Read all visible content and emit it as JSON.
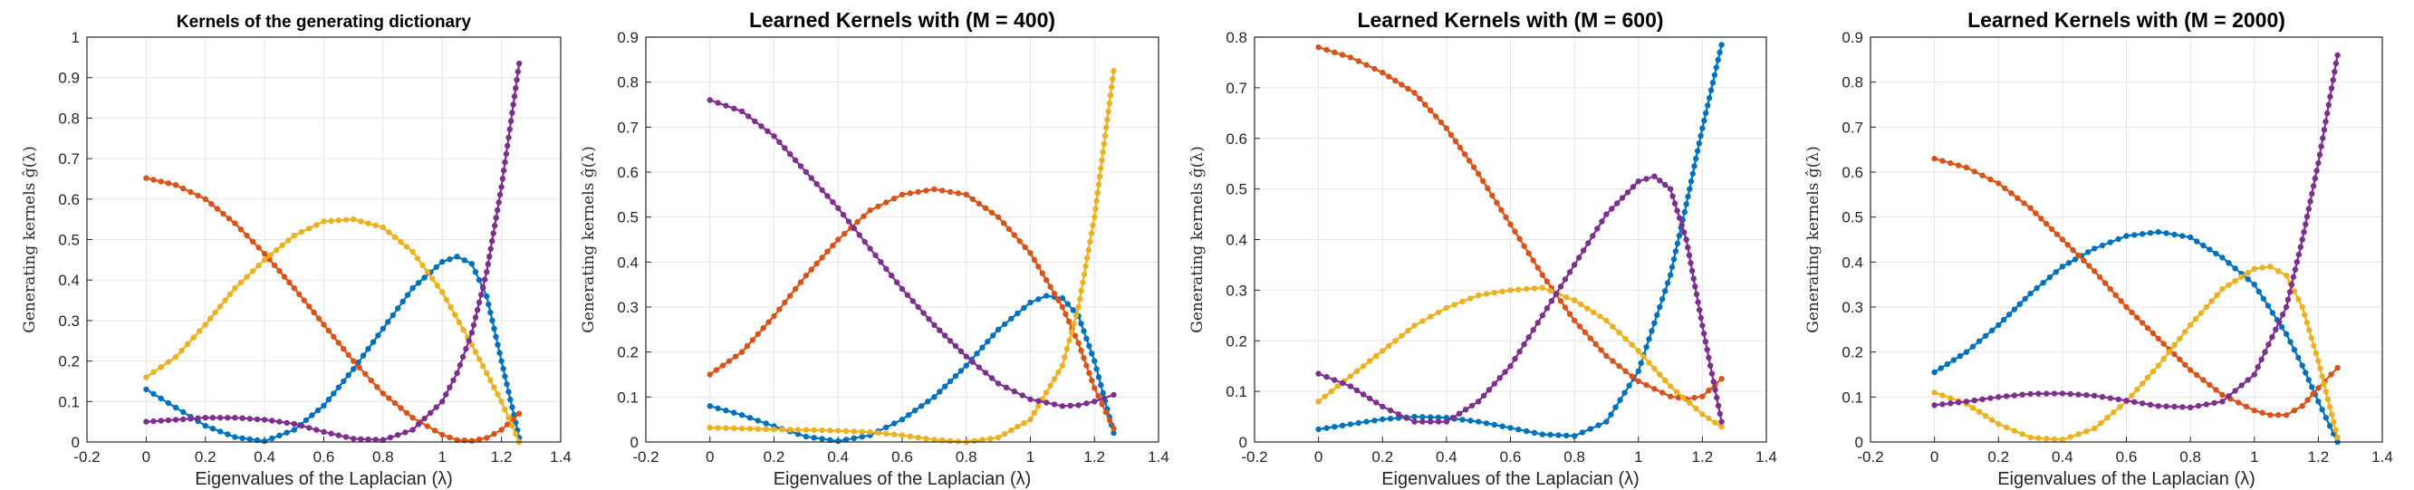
{
  "chart_data": [
    {
      "type": "line",
      "title": "Kernels of the generating dictionary",
      "xlabel": "Eigenvalues of the Laplacian (λ)",
      "ylabel": "Generating kernels ĝ(λ)",
      "xlim": [
        -0.2,
        1.4
      ],
      "ylim": [
        0,
        1.0
      ],
      "xticks": [
        "-0.2",
        "0",
        "0.2",
        "0.4",
        "0.6",
        "0.8",
        "1",
        "1.2",
        "1.4"
      ],
      "yticks": [
        "0",
        "0.1",
        "0.2",
        "0.3",
        "0.4",
        "0.5",
        "0.6",
        "0.7",
        "0.8",
        "0.9",
        "1"
      ],
      "grid": true,
      "series": [
        {
          "color": "#0072bd",
          "x": [
            0,
            0.1,
            0.2,
            0.3,
            0.4,
            0.5,
            0.6,
            0.7,
            0.8,
            0.9,
            1.0,
            1.05,
            1.1,
            1.15,
            1.2,
            1.26
          ],
          "values": [
            0.13,
            0.085,
            0.04,
            0.012,
            0.002,
            0.03,
            0.09,
            0.18,
            0.28,
            0.38,
            0.445,
            0.458,
            0.44,
            0.36,
            0.2,
            0.01
          ]
        },
        {
          "color": "#d95319",
          "x": [
            0,
            0.1,
            0.2,
            0.3,
            0.4,
            0.5,
            0.6,
            0.7,
            0.8,
            0.9,
            1.0,
            1.05,
            1.1,
            1.15,
            1.2,
            1.26
          ],
          "values": [
            0.652,
            0.635,
            0.6,
            0.54,
            0.465,
            0.38,
            0.29,
            0.2,
            0.12,
            0.06,
            0.018,
            0.005,
            0.003,
            0.01,
            0.03,
            0.07
          ]
        },
        {
          "color": "#edb120",
          "x": [
            0,
            0.1,
            0.2,
            0.3,
            0.4,
            0.5,
            0.6,
            0.7,
            0.8,
            0.9,
            1.0,
            1.1,
            1.2,
            1.26
          ],
          "values": [
            0.16,
            0.21,
            0.29,
            0.38,
            0.45,
            0.51,
            0.545,
            0.55,
            0.53,
            0.47,
            0.37,
            0.24,
            0.1,
            0.0
          ]
        },
        {
          "color": "#7e2f8e",
          "x": [
            0,
            0.1,
            0.2,
            0.3,
            0.4,
            0.5,
            0.6,
            0.7,
            0.8,
            0.9,
            1.0,
            1.05,
            1.1,
            1.15,
            1.2,
            1.26
          ],
          "values": [
            0.05,
            0.055,
            0.06,
            0.06,
            0.055,
            0.045,
            0.025,
            0.008,
            0.005,
            0.03,
            0.1,
            0.17,
            0.27,
            0.42,
            0.63,
            0.935
          ]
        }
      ]
    },
    {
      "type": "line",
      "title": "Learned Kernels with (M = 400)",
      "xlabel": "Eigenvalues of the Laplacian (λ)",
      "ylabel": "Generating kernels ĝ(λ)",
      "xlim": [
        -0.2,
        1.4
      ],
      "ylim": [
        0,
        0.9
      ],
      "xticks": [
        "-0.2",
        "0",
        "0.2",
        "0.4",
        "0.6",
        "0.8",
        "1",
        "1.2",
        "1.4"
      ],
      "yticks": [
        "0",
        "0.1",
        "0.2",
        "0.3",
        "0.4",
        "0.5",
        "0.6",
        "0.7",
        "0.8",
        "0.9"
      ],
      "grid": true,
      "series": [
        {
          "color": "#0072bd",
          "x": [
            0,
            0.1,
            0.2,
            0.3,
            0.4,
            0.5,
            0.6,
            0.7,
            0.8,
            0.9,
            1.0,
            1.05,
            1.1,
            1.15,
            1.2,
            1.26
          ],
          "values": [
            0.08,
            0.06,
            0.035,
            0.012,
            0.002,
            0.015,
            0.05,
            0.1,
            0.17,
            0.25,
            0.31,
            0.325,
            0.32,
            0.28,
            0.18,
            0.02
          ]
        },
        {
          "color": "#d95319",
          "x": [
            0,
            0.1,
            0.2,
            0.3,
            0.4,
            0.5,
            0.6,
            0.7,
            0.8,
            0.9,
            1.0,
            1.1,
            1.15,
            1.2,
            1.26
          ],
          "values": [
            0.15,
            0.2,
            0.28,
            0.37,
            0.45,
            0.515,
            0.55,
            0.562,
            0.55,
            0.5,
            0.42,
            0.3,
            0.22,
            0.12,
            0.03
          ]
        },
        {
          "color": "#edb120",
          "x": [
            0,
            0.1,
            0.2,
            0.3,
            0.4,
            0.5,
            0.6,
            0.7,
            0.8,
            0.9,
            1.0,
            1.1,
            1.15,
            1.2,
            1.26
          ],
          "values": [
            0.032,
            0.03,
            0.028,
            0.027,
            0.025,
            0.022,
            0.015,
            0.005,
            0.0,
            0.01,
            0.05,
            0.17,
            0.3,
            0.5,
            0.825
          ]
        },
        {
          "color": "#7e2f8e",
          "x": [
            0,
            0.1,
            0.2,
            0.3,
            0.4,
            0.5,
            0.6,
            0.7,
            0.8,
            0.9,
            1.0,
            1.1,
            1.15,
            1.2,
            1.26
          ],
          "values": [
            0.76,
            0.735,
            0.68,
            0.6,
            0.52,
            0.43,
            0.34,
            0.26,
            0.19,
            0.13,
            0.095,
            0.08,
            0.082,
            0.09,
            0.105
          ]
        }
      ]
    },
    {
      "type": "line",
      "title": "Learned Kernels with (M = 600)",
      "xlabel": "Eigenvalues of the Laplacian (λ)",
      "ylabel": "Generating kernels ĝ(λ)",
      "xlim": [
        -0.2,
        1.4
      ],
      "ylim": [
        0,
        0.8
      ],
      "xticks": [
        "-0.2",
        "0",
        "0.2",
        "0.4",
        "0.6",
        "0.8",
        "1",
        "1.2",
        "1.4"
      ],
      "yticks": [
        "0",
        "0.1",
        "0.2",
        "0.3",
        "0.4",
        "0.5",
        "0.6",
        "0.7",
        "0.8"
      ],
      "grid": true,
      "series": [
        {
          "color": "#0072bd",
          "x": [
            0,
            0.1,
            0.2,
            0.3,
            0.4,
            0.5,
            0.6,
            0.7,
            0.8,
            0.9,
            1.0,
            1.1,
            1.15,
            1.2,
            1.26
          ],
          "values": [
            0.025,
            0.035,
            0.045,
            0.05,
            0.048,
            0.04,
            0.028,
            0.015,
            0.012,
            0.04,
            0.14,
            0.33,
            0.47,
            0.62,
            0.785
          ]
        },
        {
          "color": "#d95319",
          "x": [
            0,
            0.1,
            0.2,
            0.3,
            0.4,
            0.5,
            0.6,
            0.7,
            0.8,
            0.9,
            1.0,
            1.1,
            1.15,
            1.2,
            1.26
          ],
          "values": [
            0.78,
            0.76,
            0.73,
            0.69,
            0.62,
            0.53,
            0.43,
            0.33,
            0.24,
            0.17,
            0.12,
            0.09,
            0.085,
            0.09,
            0.125
          ]
        },
        {
          "color": "#edb120",
          "x": [
            0,
            0.1,
            0.2,
            0.3,
            0.4,
            0.5,
            0.6,
            0.7,
            0.8,
            0.9,
            1.0,
            1.1,
            1.2,
            1.26
          ],
          "values": [
            0.08,
            0.13,
            0.18,
            0.23,
            0.265,
            0.29,
            0.3,
            0.305,
            0.28,
            0.24,
            0.18,
            0.11,
            0.055,
            0.03
          ]
        },
        {
          "color": "#7e2f8e",
          "x": [
            0,
            0.1,
            0.2,
            0.3,
            0.4,
            0.5,
            0.6,
            0.7,
            0.8,
            0.9,
            1.0,
            1.05,
            1.1,
            1.15,
            1.2,
            1.26
          ],
          "values": [
            0.135,
            0.11,
            0.07,
            0.04,
            0.04,
            0.08,
            0.15,
            0.25,
            0.35,
            0.45,
            0.515,
            0.525,
            0.5,
            0.4,
            0.23,
            0.04
          ]
        }
      ]
    },
    {
      "type": "line",
      "title": "Learned Kernels with (M = 2000)",
      "xlabel": "Eigenvalues of the Laplacian (λ)",
      "ylabel": "Generating kernels ĝ(λ)",
      "xlim": [
        -0.2,
        1.4
      ],
      "ylim": [
        0,
        0.9
      ],
      "xticks": [
        "-0.2",
        "0",
        "0.2",
        "0.4",
        "0.6",
        "0.8",
        "1",
        "1.2",
        "1.4"
      ],
      "yticks": [
        "0",
        "0.1",
        "0.2",
        "0.3",
        "0.4",
        "0.5",
        "0.6",
        "0.7",
        "0.8",
        "0.9"
      ],
      "grid": true,
      "series": [
        {
          "color": "#0072bd",
          "x": [
            0,
            0.1,
            0.2,
            0.3,
            0.4,
            0.5,
            0.6,
            0.7,
            0.8,
            0.9,
            1.0,
            1.1,
            1.15,
            1.2,
            1.26
          ],
          "values": [
            0.155,
            0.2,
            0.26,
            0.33,
            0.39,
            0.43,
            0.458,
            0.467,
            0.455,
            0.41,
            0.35,
            0.24,
            0.17,
            0.09,
            0.0
          ]
        },
        {
          "color": "#d95319",
          "x": [
            0,
            0.1,
            0.2,
            0.3,
            0.4,
            0.5,
            0.6,
            0.7,
            0.8,
            0.9,
            1.0,
            1.05,
            1.1,
            1.15,
            1.2,
            1.26
          ],
          "values": [
            0.63,
            0.61,
            0.575,
            0.52,
            0.45,
            0.38,
            0.3,
            0.23,
            0.16,
            0.105,
            0.07,
            0.06,
            0.06,
            0.08,
            0.12,
            0.165
          ]
        },
        {
          "color": "#edb120",
          "x": [
            0,
            0.1,
            0.2,
            0.3,
            0.4,
            0.5,
            0.6,
            0.7,
            0.8,
            0.9,
            1.0,
            1.05,
            1.1,
            1.15,
            1.2,
            1.26
          ],
          "values": [
            0.11,
            0.085,
            0.04,
            0.01,
            0.005,
            0.03,
            0.09,
            0.17,
            0.26,
            0.34,
            0.385,
            0.39,
            0.37,
            0.3,
            0.18,
            0.01
          ]
        },
        {
          "color": "#7e2f8e",
          "x": [
            0,
            0.1,
            0.2,
            0.3,
            0.4,
            0.5,
            0.6,
            0.7,
            0.8,
            0.9,
            1.0,
            1.1,
            1.15,
            1.2,
            1.26
          ],
          "values": [
            0.082,
            0.09,
            0.1,
            0.107,
            0.108,
            0.103,
            0.092,
            0.08,
            0.077,
            0.09,
            0.15,
            0.3,
            0.45,
            0.62,
            0.86
          ]
        }
      ]
    }
  ]
}
